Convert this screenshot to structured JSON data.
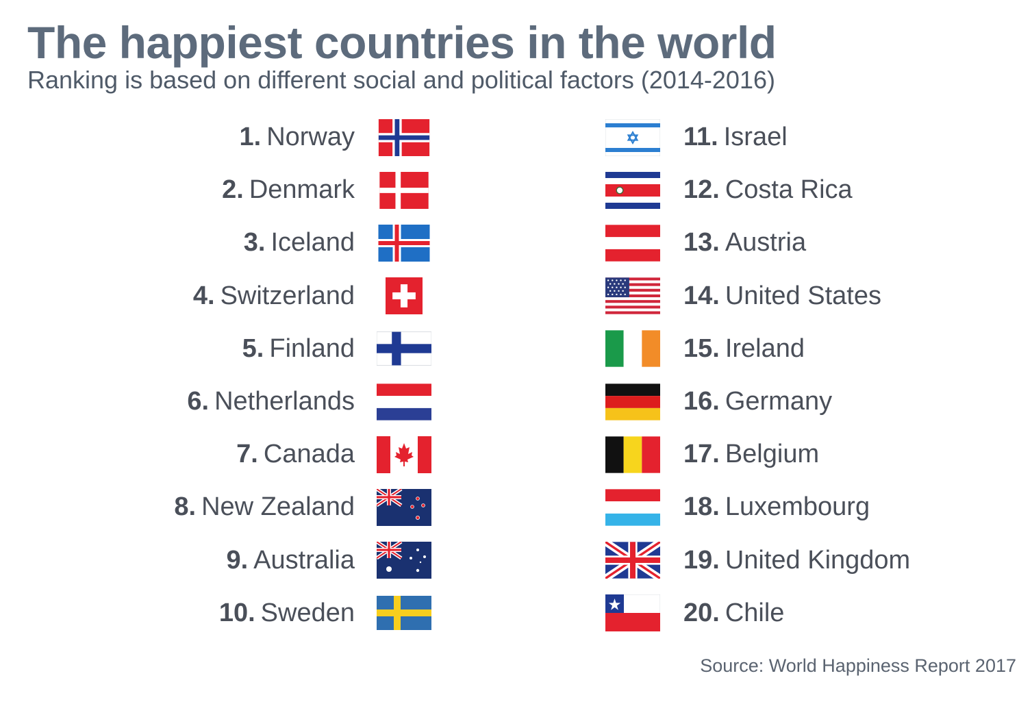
{
  "header": {
    "title": "The happiest countries in the world",
    "subtitle": "Ranking is based on different social and political factors (2014-2016)"
  },
  "left_column": [
    {
      "rank": "1.",
      "country": "Norway",
      "flag": "norway"
    },
    {
      "rank": "2.",
      "country": "Denmark",
      "flag": "denmark"
    },
    {
      "rank": "3.",
      "country": "Iceland",
      "flag": "iceland"
    },
    {
      "rank": "4.",
      "country": "Switzerland",
      "flag": "switzerland"
    },
    {
      "rank": "5.",
      "country": "Finland",
      "flag": "finland"
    },
    {
      "rank": "6.",
      "country": "Netherlands",
      "flag": "netherlands"
    },
    {
      "rank": "7.",
      "country": "Canada",
      "flag": "canada"
    },
    {
      "rank": "8.",
      "country": "New Zealand",
      "flag": "new-zealand"
    },
    {
      "rank": "9.",
      "country": "Australia",
      "flag": "australia"
    },
    {
      "rank": "10.",
      "country": "Sweden",
      "flag": "sweden"
    }
  ],
  "right_column": [
    {
      "rank": "11.",
      "country": "Israel",
      "flag": "israel"
    },
    {
      "rank": "12.",
      "country": "Costa Rica",
      "flag": "costa-rica"
    },
    {
      "rank": "13.",
      "country": "Austria",
      "flag": "austria"
    },
    {
      "rank": "14.",
      "country": "United States",
      "flag": "united-states"
    },
    {
      "rank": "15.",
      "country": "Ireland",
      "flag": "ireland"
    },
    {
      "rank": "16.",
      "country": "Germany",
      "flag": "germany"
    },
    {
      "rank": "17.",
      "country": "Belgium",
      "flag": "belgium"
    },
    {
      "rank": "18.",
      "country": "Luxembourg",
      "flag": "luxembourg"
    },
    {
      "rank": "19.",
      "country": "United Kingdom",
      "flag": "united-kingdom"
    },
    {
      "rank": "20.",
      "country": "Chile",
      "flag": "chile"
    }
  ],
  "footer": {
    "source": "Source: World Happiness Report 2017"
  },
  "colors": {
    "title": "#5d6b7c",
    "text": "#4a4f59",
    "flag_red": "#e4222e",
    "flag_blue": "#1f3a93"
  }
}
